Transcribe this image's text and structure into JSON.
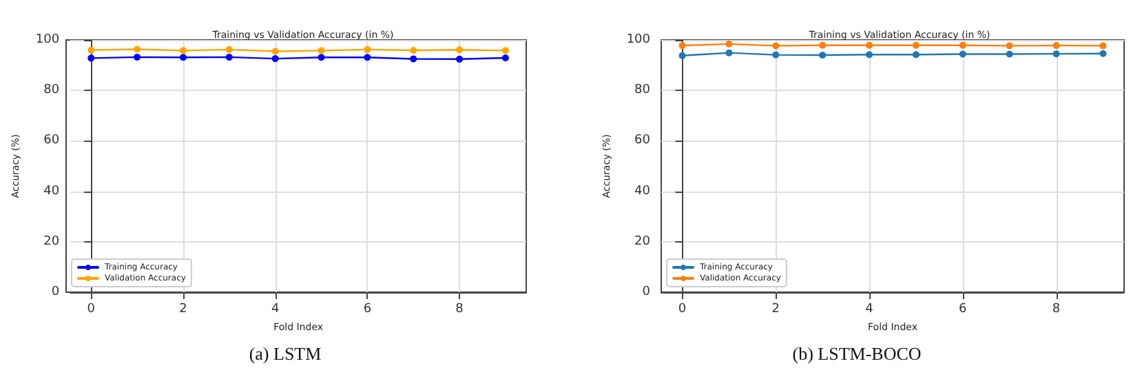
{
  "chart_data": [
    {
      "type": "line",
      "title": "Training vs Validation Accuracy (in %)",
      "xlabel": "Fold Index",
      "ylabel": "Accuracy (%)",
      "x": [
        0,
        1,
        2,
        3,
        4,
        5,
        6,
        7,
        8,
        9
      ],
      "series": [
        {
          "name": "Training Accuracy",
          "color": "#0000ff",
          "values": [
            92.8,
            93.2,
            93.1,
            93.2,
            92.6,
            93.1,
            93.1,
            92.5,
            92.4,
            92.9
          ]
        },
        {
          "name": "Validation Accuracy",
          "color": "#ffa500",
          "values": [
            96.0,
            96.3,
            95.8,
            96.2,
            95.5,
            95.8,
            96.2,
            95.9,
            96.1,
            95.8
          ]
        }
      ],
      "xlim": [
        -0.45,
        9.45
      ],
      "xticks": [
        0,
        2,
        4,
        6,
        8
      ],
      "ylim": [
        0,
        100
      ],
      "yticks": [
        0,
        20,
        40,
        60,
        80,
        100
      ],
      "grid": true,
      "legend": "bottom left",
      "marker": "circle",
      "line_style": "solid",
      "annotations": [
        "(a) LSTM"
      ]
    },
    {
      "type": "line",
      "title": "Training vs Validation Accuracy (in %)",
      "xlabel": "Fold Index",
      "ylabel": "Accuracy (%)",
      "x": [
        0,
        1,
        2,
        3,
        4,
        5,
        6,
        7,
        8,
        9
      ],
      "series": [
        {
          "name": "Training Accuracy",
          "color": "#1f77b4",
          "values": [
            93.8,
            94.9,
            94.1,
            94.0,
            94.2,
            94.2,
            94.4,
            94.4,
            94.5,
            94.6
          ]
        },
        {
          "name": "Validation Accuracy",
          "color": "#ff7f0e",
          "values": [
            97.8,
            98.4,
            97.7,
            97.9,
            97.9,
            97.9,
            97.9,
            97.7,
            97.8,
            97.7
          ]
        }
      ],
      "xlim": [
        -0.45,
        9.45
      ],
      "xticks": [
        0,
        2,
        4,
        6,
        8
      ],
      "ylim": [
        0,
        100
      ],
      "yticks": [
        0,
        20,
        40,
        60,
        80,
        100
      ],
      "grid": true,
      "legend": "bottom left",
      "marker": "circle",
      "line_style": "solid",
      "annotations": [
        "(b) LSTM-BOCO"
      ]
    }
  ]
}
